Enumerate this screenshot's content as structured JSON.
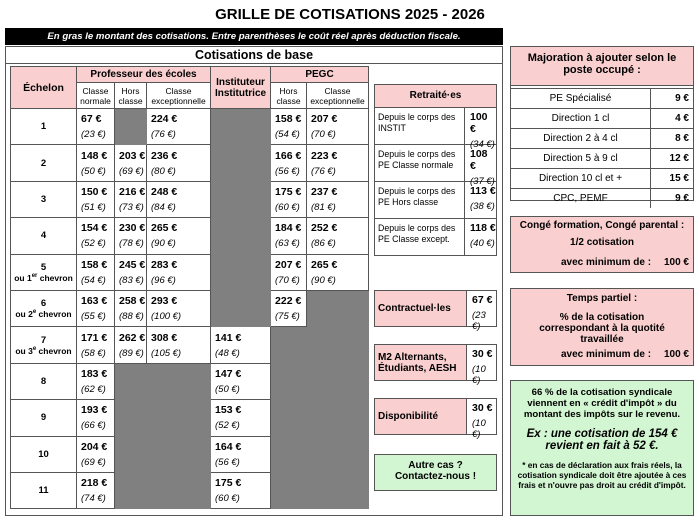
{
  "header": {
    "title": "GRILLE DE COTISATIONS 2025 - 2026",
    "banner": "En gras le montant des cotisations. Entre parenthèses le coût réel après déduction fiscale."
  },
  "base": {
    "title": "Cotisations de base",
    "columns": {
      "echelon": "Échelon",
      "pe": "Professeur des écoles",
      "pe_sub": [
        "Classe normale",
        "Hors classe",
        "Classe exceptionnelle"
      ],
      "inst": "Instituteur Institutrice",
      "pegc": "PEGC",
      "pegc_sub": [
        "Hors classe",
        "Classe exceptionnelle"
      ]
    },
    "rows": [
      {
        "echelon": {
          "num": "1"
        },
        "cells": [
          {
            "amount": "67 €",
            "real": "(23 €)"
          },
          null,
          {
            "amount": "224 €",
            "real": "(76 €)"
          },
          null,
          {
            "amount": "158 €",
            "real": "(54 €)"
          },
          {
            "amount": "207 €",
            "real": "(70 €)"
          }
        ]
      },
      {
        "echelon": {
          "num": "2"
        },
        "cells": [
          {
            "amount": "148 €",
            "real": "(50 €)"
          },
          {
            "amount": "203 €",
            "real": "(69 €)"
          },
          {
            "amount": "236 €",
            "real": "(80 €)"
          },
          null,
          {
            "amount": "166 €",
            "real": "(56 €)"
          },
          {
            "amount": "223 €",
            "real": "(76 €)"
          }
        ]
      },
      {
        "echelon": {
          "num": "3"
        },
        "cells": [
          {
            "amount": "150 €",
            "real": "(51 €)"
          },
          {
            "amount": "216 €",
            "real": "(73 €)"
          },
          {
            "amount": "248 €",
            "real": "(84 €)"
          },
          null,
          {
            "amount": "175 €",
            "real": "(60 €)"
          },
          {
            "amount": "237 €",
            "real": "(81 €)"
          }
        ]
      },
      {
        "echelon": {
          "num": "4"
        },
        "cells": [
          {
            "amount": "154 €",
            "real": "(52 €)"
          },
          {
            "amount": "230 €",
            "real": "(78 €)"
          },
          {
            "amount": "265 €",
            "real": "(90 €)"
          },
          null,
          {
            "amount": "184 €",
            "real": "(63 €)"
          },
          {
            "amount": "252 €",
            "real": "(86 €)"
          }
        ]
      },
      {
        "echelon": {
          "num": "5",
          "pre": "ou 1",
          "sup": "er",
          "post": " chevron"
        },
        "cells": [
          {
            "amount": "158 €",
            "real": "(54 €)"
          },
          {
            "amount": "245 €",
            "real": "(83 €)"
          },
          {
            "amount": "283 €",
            "real": "(96 €)"
          },
          null,
          {
            "amount": "207 €",
            "real": "(70 €)"
          },
          {
            "amount": "265 €",
            "real": "(90 €)"
          }
        ]
      },
      {
        "echelon": {
          "num": "6",
          "pre": "ou 2",
          "sup": "e",
          "post": " chevron"
        },
        "cells": [
          {
            "amount": "163 €",
            "real": "(55 €)"
          },
          {
            "amount": "258 €",
            "real": "(88 €)"
          },
          {
            "amount": "293 €",
            "real": "(100 €)"
          },
          null,
          {
            "amount": "222 €",
            "real": "(75 €)"
          },
          null
        ]
      },
      {
        "echelon": {
          "num": "7",
          "pre": "ou 3",
          "sup": "e",
          "post": " chevron"
        },
        "cells": [
          {
            "amount": "171 €",
            "real": "(58 €)"
          },
          {
            "amount": "262 €",
            "real": "(89 €)"
          },
          {
            "amount": "308 €",
            "real": "(105 €)"
          },
          {
            "amount": "141 €",
            "real": "(48 €)"
          },
          null,
          null
        ]
      },
      {
        "echelon": {
          "num": "8"
        },
        "cells": [
          {
            "amount": "183 €",
            "real": "(62 €)"
          },
          null,
          null,
          {
            "amount": "147 €",
            "real": "(50 €)"
          },
          null,
          null
        ]
      },
      {
        "echelon": {
          "num": "9"
        },
        "cells": [
          {
            "amount": "193 €",
            "real": "(66 €)"
          },
          null,
          null,
          {
            "amount": "153 €",
            "real": "(52 €)"
          },
          null,
          null
        ]
      },
      {
        "echelon": {
          "num": "10"
        },
        "cells": [
          {
            "amount": "204 €",
            "real": "(69 €)"
          },
          null,
          null,
          {
            "amount": "164 €",
            "real": "(56 €)"
          },
          null,
          null
        ]
      },
      {
        "echelon": {
          "num": "11"
        },
        "cells": [
          {
            "amount": "218 €",
            "real": "(74 €)"
          },
          null,
          null,
          {
            "amount": "175 €",
            "real": "(60 €)"
          },
          null,
          null
        ]
      }
    ]
  },
  "retraites": {
    "title": "Retraité·es",
    "rows": [
      {
        "label": "Depuis le corps des INSTIT",
        "amount": "100 €",
        "real": "(34 €)"
      },
      {
        "label": "Depuis le corps des PE Classe normale",
        "amount": "108 €",
        "real": "(37 €)"
      },
      {
        "label": "Depuis le corps des PE Hors classe",
        "amount": "113 €",
        "real": "(38 €)"
      },
      {
        "label": "Depuis le corps des PE Classe except.",
        "amount": "118 €",
        "real": "(40 €)"
      }
    ]
  },
  "others": [
    {
      "label": "Contractuel·les",
      "amount": "67 €",
      "real": "(23 €)"
    },
    {
      "label": "M2 Alternants, Étudiants, AESH",
      "amount": "30 €",
      "real": "(10 €)"
    },
    {
      "label": "Disponibilité",
      "amount": "30 €",
      "real": "(10 €)"
    }
  ],
  "contact": {
    "line1": "Autre cas ?",
    "line2": "Contactez-nous !"
  },
  "majoration": {
    "title": "Majoration à ajouter selon le poste occupé :",
    "rows": [
      {
        "label": "PE Spécialisé",
        "amount": "9 €"
      },
      {
        "label": "Direction 1 cl",
        "amount": "4 €"
      },
      {
        "label": "Direction 2 à 4 cl",
        "amount": "8 €"
      },
      {
        "label": "Direction 5 à 9 cl",
        "amount": "12 €"
      },
      {
        "label": "Direction 10 cl et +",
        "amount": "15 €"
      },
      {
        "label": "CPC, PEMF",
        "amount": "9 €"
      }
    ]
  },
  "conge": {
    "title": "Congé formation, Congé parental :",
    "subtitle": "1/2 cotisation",
    "min_label": "avec minimum de :",
    "min_value": "100 €"
  },
  "temps_partiel": {
    "title": "Temps partiel :",
    "subtitle": "% de la cotisation correspondant à la quotité travaillée",
    "min_label": "avec minimum de :",
    "min_value": "100 €"
  },
  "credit": {
    "text": "66 % de la cotisation syndicale viennent en « crédit d'impôt » du montant des impôts sur le revenu.",
    "example": "Ex : une cotisation de 154 € revient en fait à 52 €.",
    "note": "* en cas de déclaration aux frais réels, la cotisation syndicale doit être ajoutée à ces frais et n'ouvre pas droit au crédit d'impôt."
  }
}
